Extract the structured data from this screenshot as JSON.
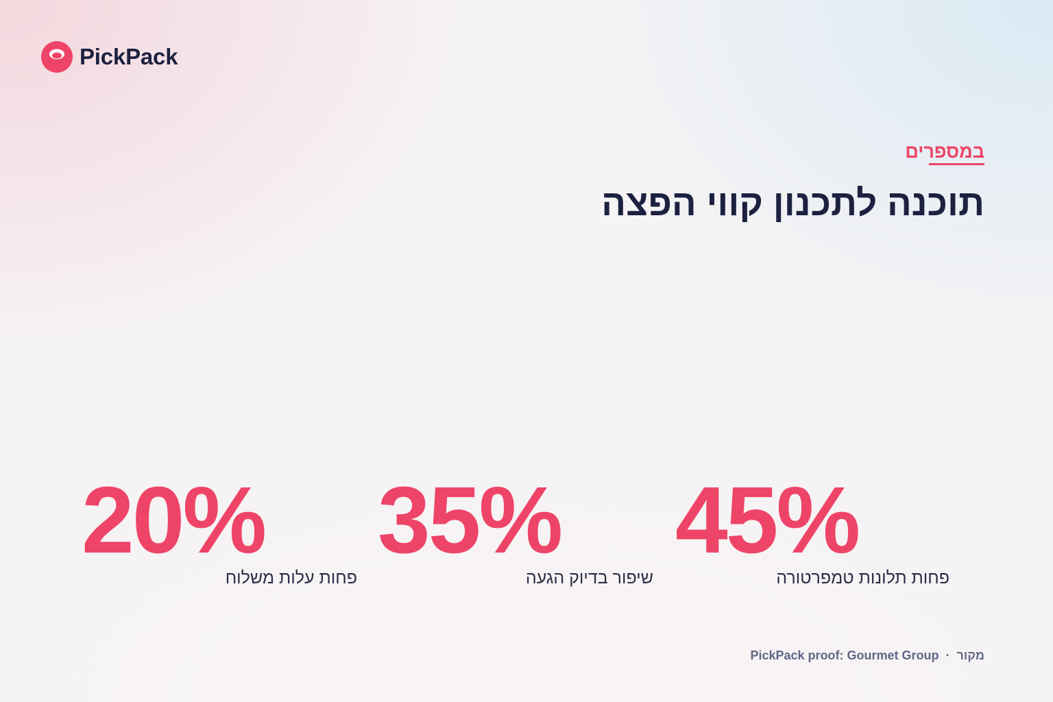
{
  "brand": {
    "name": "PickPack",
    "logo_icon": "pickpack-logo-icon",
    "accent_color": "#ee4468",
    "text_color": "#1c2140"
  },
  "header": {
    "eyebrow": "במספרים",
    "headline": "תוכנה לתכנון קווי הפצה"
  },
  "stats": [
    {
      "value": "45%",
      "label": "פחות תלונות טמפרטורה"
    },
    {
      "value": "35%",
      "label": "שיפור בדיוק הגעה"
    },
    {
      "value": "20%",
      "label": "פחות עלות משלוח"
    }
  ],
  "footer": {
    "source_label": "מקור",
    "separator": "·",
    "source_text": "PickPack proof: Gourmet Group"
  }
}
